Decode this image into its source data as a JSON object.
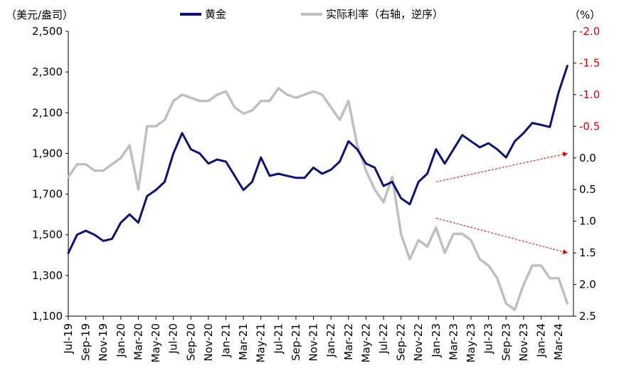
{
  "chart_data": {
    "type": "line",
    "left_unit": "（美元/盎司）",
    "right_unit": "（%）",
    "legend": [
      {
        "name": "黄金",
        "color": "#0a1178"
      },
      {
        "name": "实际利率（右轴，逆序）",
        "color": "#bfbfbf"
      }
    ],
    "x_ticks": [
      "Jul-19",
      "Sep-19",
      "Nov-19",
      "Jan-20",
      "Mar-20",
      "May-20",
      "Jul-20",
      "Sep-20",
      "Nov-20",
      "Jan-21",
      "Mar-21",
      "May-21",
      "Jul-21",
      "Sep-21",
      "Nov-21",
      "Jan-22",
      "Mar-22",
      "May-22",
      "Jul-22",
      "Sep-22",
      "Nov-22",
      "Jan-23",
      "Mar-23",
      "May-23",
      "Jul-23",
      "Sep-23",
      "Nov-23",
      "Jan-24",
      "Mar-24"
    ],
    "y_left": {
      "min": 1100,
      "max": 2500,
      "ticks": [
        "2,500",
        "2,300",
        "2,100",
        "1,900",
        "1,700",
        "1,500",
        "1,300",
        "1,100"
      ],
      "tick_values": [
        2500,
        2300,
        2100,
        1900,
        1700,
        1500,
        1300,
        1100
      ]
    },
    "y_right": {
      "min": -2.0,
      "max": 2.5,
      "inverted": true,
      "ticks": [
        "-2.0",
        "-1.5",
        "-1.0",
        "-0.5",
        "0.0",
        "0.5",
        "1.0",
        "1.5",
        "2.0",
        "2.5"
      ],
      "tick_values": [
        -2.0,
        -1.5,
        -1.0,
        -0.5,
        0.0,
        0.5,
        1.0,
        1.5,
        2.0,
        2.5
      ]
    },
    "series": [
      {
        "name": "黄金",
        "axis": "left",
        "color": "#0a1178",
        "x": [
          "2019-07",
          "2019-08",
          "2019-09",
          "2019-10",
          "2019-11",
          "2019-12",
          "2020-01",
          "2020-02",
          "2020-03",
          "2020-04",
          "2020-05",
          "2020-06",
          "2020-07",
          "2020-08",
          "2020-09",
          "2020-10",
          "2020-11",
          "2020-12",
          "2021-01",
          "2021-02",
          "2021-03",
          "2021-04",
          "2021-05",
          "2021-06",
          "2021-07",
          "2021-08",
          "2021-09",
          "2021-10",
          "2021-11",
          "2021-12",
          "2022-01",
          "2022-02",
          "2022-03",
          "2022-04",
          "2022-05",
          "2022-06",
          "2022-07",
          "2022-08",
          "2022-09",
          "2022-10",
          "2022-11",
          "2022-12",
          "2023-01",
          "2023-02",
          "2023-03",
          "2023-04",
          "2023-05",
          "2023-06",
          "2023-07",
          "2023-08",
          "2023-09",
          "2023-10",
          "2023-11",
          "2023-12",
          "2024-01",
          "2024-02",
          "2024-03",
          "2024-04"
        ],
        "values": [
          1410,
          1500,
          1520,
          1500,
          1470,
          1480,
          1560,
          1600,
          1560,
          1690,
          1720,
          1760,
          1900,
          2000,
          1920,
          1900,
          1850,
          1870,
          1860,
          1790,
          1720,
          1760,
          1880,
          1790,
          1800,
          1790,
          1780,
          1780,
          1830,
          1800,
          1820,
          1860,
          1960,
          1920,
          1850,
          1830,
          1740,
          1760,
          1680,
          1650,
          1760,
          1800,
          1920,
          1850,
          1920,
          1990,
          1960,
          1930,
          1950,
          1920,
          1880,
          1960,
          2000,
          2050,
          2040,
          2030,
          2200,
          2330
        ]
      },
      {
        "name": "实际利率（右轴，逆序）",
        "axis": "right",
        "color": "#bfbfbf",
        "x": [
          "2019-07",
          "2019-08",
          "2019-09",
          "2019-10",
          "2019-11",
          "2019-12",
          "2020-01",
          "2020-02",
          "2020-03",
          "2020-04",
          "2020-05",
          "2020-06",
          "2020-07",
          "2020-08",
          "2020-09",
          "2020-10",
          "2020-11",
          "2020-12",
          "2021-01",
          "2021-02",
          "2021-03",
          "2021-04",
          "2021-05",
          "2021-06",
          "2021-07",
          "2021-08",
          "2021-09",
          "2021-10",
          "2021-11",
          "2021-12",
          "2022-01",
          "2022-02",
          "2022-03",
          "2022-04",
          "2022-05",
          "2022-06",
          "2022-07",
          "2022-08",
          "2022-09",
          "2022-10",
          "2022-11",
          "2022-12",
          "2023-01",
          "2023-02",
          "2023-03",
          "2023-04",
          "2023-05",
          "2023-06",
          "2023-07",
          "2023-08",
          "2023-09",
          "2023-10",
          "2023-11",
          "2023-12",
          "2024-01",
          "2024-02",
          "2024-03",
          "2024-04"
        ],
        "values": [
          0.3,
          0.1,
          0.1,
          0.2,
          0.2,
          0.1,
          0.0,
          -0.2,
          0.5,
          -0.5,
          -0.5,
          -0.6,
          -0.9,
          -1.0,
          -0.95,
          -0.9,
          -0.9,
          -1.0,
          -1.05,
          -0.8,
          -0.7,
          -0.75,
          -0.9,
          -0.9,
          -1.1,
          -1.0,
          -0.95,
          -1.0,
          -1.05,
          -1.0,
          -0.8,
          -0.6,
          -0.9,
          -0.2,
          0.2,
          0.5,
          0.7,
          0.3,
          1.2,
          1.6,
          1.3,
          1.4,
          1.1,
          1.5,
          1.2,
          1.2,
          1.3,
          1.6,
          1.7,
          1.9,
          2.3,
          2.4,
          2.0,
          1.7,
          1.7,
          1.9,
          1.9,
          2.3
        ]
      }
    ],
    "annotations": [
      {
        "type": "arrow",
        "color": "#e00000",
        "style": "dashed",
        "from": [
          "2023-01",
          1760
        ],
        "to": [
          "2024-04",
          1900
        ],
        "axis": "left"
      },
      {
        "type": "arrow",
        "color": "#e00000",
        "style": "dashed",
        "from": [
          "2023-01",
          0.95
        ],
        "to": [
          "2024-04",
          1.5
        ],
        "axis": "right"
      }
    ]
  }
}
